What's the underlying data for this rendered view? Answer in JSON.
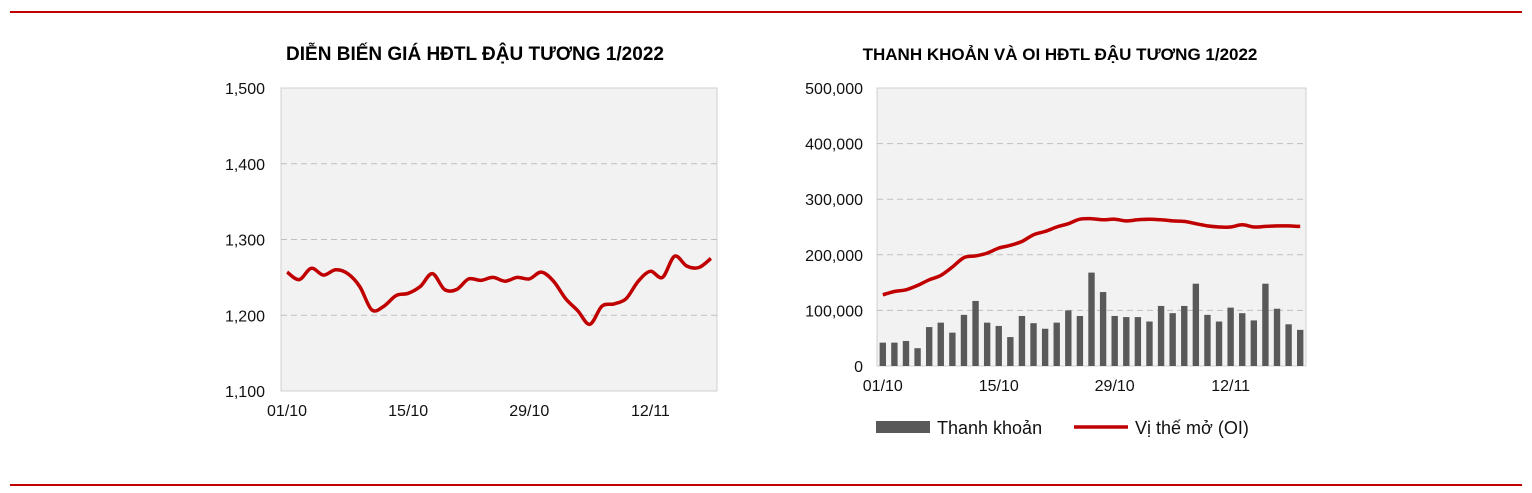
{
  "colors": {
    "rule": "#c00000",
    "line": "#c00000",
    "bar": "#595959",
    "plot_bg": "#f2f2f2",
    "grid": "#bfbfbf"
  },
  "chart_data": [
    {
      "type": "line",
      "title": "DIỄN BIẾN GIÁ HĐTL ĐẬU TƯƠNG 1/2022",
      "xlabel": "",
      "ylabel": "",
      "x_tick_labels": [
        "01/10",
        "15/10",
        "29/10",
        "12/11"
      ],
      "x_tick_index": [
        0,
        10,
        20,
        30
      ],
      "y_tick_labels": [
        "1,100",
        "1,200",
        "1,300",
        "1,400",
        "1,500"
      ],
      "ylim": [
        1100,
        1500
      ],
      "grid": "horizontal dashed",
      "series": [
        {
          "values": [
            1257,
            1247,
            1262,
            1253,
            1260,
            1255,
            1238,
            1207,
            1212,
            1226,
            1229,
            1238,
            1255,
            1234,
            1234,
            1248,
            1246,
            1250,
            1245,
            1250,
            1248,
            1257,
            1245,
            1222,
            1206,
            1188,
            1212,
            1215,
            1222,
            1245,
            1258,
            1250,
            1278,
            1265,
            1263,
            1275
          ]
        }
      ]
    },
    {
      "type": "bar+line",
      "title": "THANH KHOẢN VÀ OI HĐTL ĐẬU TƯƠNG 1/2022",
      "xlabel": "",
      "ylabel": "",
      "x_tick_labels": [
        "01/10",
        "15/10",
        "29/10",
        "12/11"
      ],
      "x_tick_index": [
        0,
        10,
        20,
        30
      ],
      "y_tick_labels": [
        "0",
        "100,000",
        "200,000",
        "300,000",
        "400,000",
        "500,000"
      ],
      "ylim": [
        0,
        500000
      ],
      "grid": "horizontal dashed",
      "legend": "bottom",
      "series": [
        {
          "name": "Thanh khoản",
          "type": "bar",
          "values": [
            42000,
            42000,
            45000,
            32000,
            70000,
            78000,
            60000,
            92000,
            117000,
            78000,
            72000,
            52000,
            90000,
            77000,
            67000,
            78000,
            100000,
            90000,
            168000,
            133000,
            90000,
            88000,
            88000,
            80000,
            108000,
            95000,
            108000,
            148000,
            92000,
            80000,
            105000,
            95000,
            82000,
            148000,
            103000,
            75000,
            65000
          ]
        },
        {
          "name": "Vị thế mở (OI)",
          "type": "line",
          "values": [
            128000,
            134000,
            137000,
            145000,
            155000,
            163000,
            178000,
            195000,
            198000,
            203000,
            212000,
            217000,
            224000,
            236000,
            242000,
            250000,
            256000,
            264000,
            265000,
            263000,
            264000,
            261000,
            263000,
            264000,
            263000,
            261000,
            260000,
            256000,
            252000,
            250000,
            250000,
            254000,
            250000,
            251000,
            252000,
            252000,
            251000
          ]
        }
      ]
    }
  ]
}
